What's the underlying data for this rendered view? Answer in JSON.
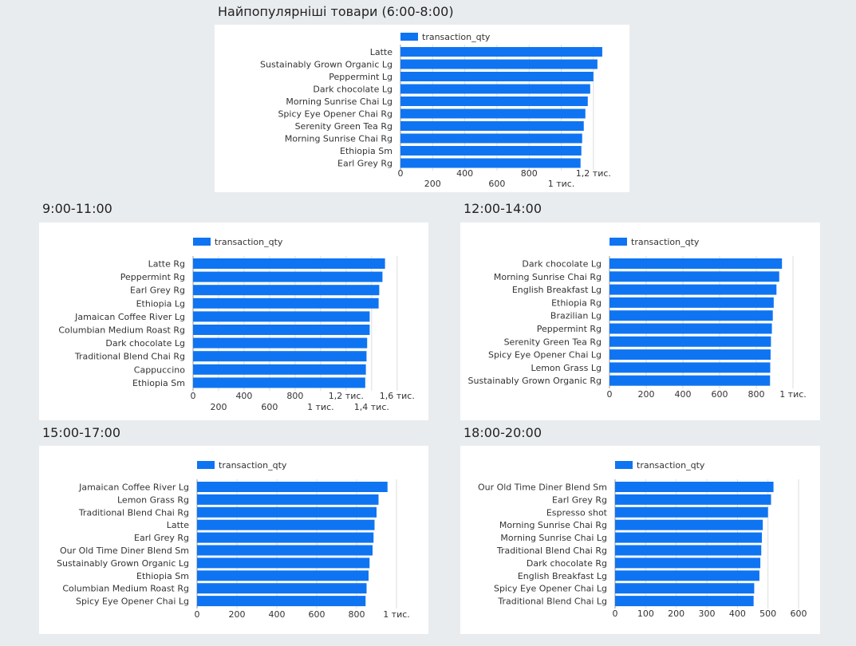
{
  "colors": {
    "bar": "#0f74f2",
    "grid": "#dddddd",
    "background": "#e9ecef"
  },
  "titles": {
    "c1": "Найпопулярніші товари (6:00-8:00)",
    "c2": "9:00-11:00",
    "c3": "12:00-14:00",
    "c4": "15:00-17:00",
    "c5": "18:00-20:00"
  },
  "chart_data": [
    {
      "type": "bar",
      "orientation": "horizontal",
      "title": "Найпопулярніші товари (6:00-8:00)",
      "legend": "top",
      "grid": true,
      "categories": [
        "Latte",
        "Sustainably Grown Organic Lg",
        "Peppermint Lg",
        "Dark chocolate Lg",
        "Morning Sunrise Chai Lg",
        "Spicy Eye Opener Chai Rg",
        "Serenity Green Tea Rg",
        "Morning Sunrise Chai Rg",
        "Ethiopia Sm",
        "Earl Grey Rg"
      ],
      "series": [
        {
          "name": "transaction_qty",
          "values": [
            1255,
            1225,
            1200,
            1180,
            1165,
            1150,
            1140,
            1130,
            1125,
            1120
          ]
        }
      ],
      "ticks": [
        0,
        200,
        400,
        600,
        800,
        1000,
        1200
      ],
      "tick_labels": [
        "0",
        "200",
        "400",
        "600",
        "800",
        "1 тис.",
        "1,2 тис."
      ],
      "xlim": [
        0,
        1300
      ]
    },
    {
      "type": "bar",
      "orientation": "horizontal",
      "title": "9:00-11:00",
      "legend": "top",
      "grid": true,
      "categories": [
        "Latte Rg",
        "Peppermint Rg",
        "Earl Grey Rg",
        "Ethiopia Lg",
        "Jamaican Coffee River Lg",
        "Columbian Medium Roast Rg",
        "Dark chocolate Lg",
        "Traditional Blend Chai Rg",
        "Cappuccino",
        "Ethiopia Sm"
      ],
      "series": [
        {
          "name": "transaction_qty",
          "values": [
            1505,
            1485,
            1460,
            1455,
            1385,
            1385,
            1365,
            1360,
            1355,
            1350
          ]
        }
      ],
      "ticks": [
        0,
        200,
        400,
        600,
        800,
        1000,
        1200,
        1400,
        1600
      ],
      "tick_labels": [
        "0",
        "200",
        "400",
        "600",
        "800",
        "1 тис.",
        "1,2 тис.",
        "1,4 тис.",
        "1,6 тис."
      ],
      "xlim": [
        0,
        1620
      ]
    },
    {
      "type": "bar",
      "orientation": "horizontal",
      "title": "12:00-14:00",
      "legend": "top",
      "grid": true,
      "categories": [
        "Dark chocolate Lg",
        "Morning Sunrise Chai Rg",
        "English Breakfast Lg",
        "Ethiopia Rg",
        "Brazilian Lg",
        "Peppermint Rg",
        "Serenity Green Tea Rg",
        "Spicy Eye Opener Chai Lg",
        "Lemon Grass Lg",
        "Sustainably Grown Organic Rg"
      ],
      "series": [
        {
          "name": "transaction_qty",
          "values": [
            940,
            925,
            910,
            895,
            890,
            885,
            880,
            878,
            876,
            875
          ]
        }
      ],
      "ticks": [
        0,
        200,
        400,
        600,
        800,
        1000
      ],
      "tick_labels": [
        "0",
        "200",
        "400",
        "600",
        "800",
        "1 тис."
      ],
      "xlim": [
        0,
        1000
      ]
    },
    {
      "type": "bar",
      "orientation": "horizontal",
      "title": "15:00-17:00",
      "legend": "top",
      "grid": true,
      "categories": [
        "Jamaican Coffee River Lg",
        "Lemon Grass Rg",
        "Traditional Blend Chai Rg",
        "Latte",
        "Earl Grey Rg",
        "Our Old Time Diner Blend Sm",
        "Sustainably Grown Organic Lg",
        "Ethiopia Sm",
        "Columbian Medium Roast Rg",
        "Spicy Eye Opener Chai Lg"
      ],
      "series": [
        {
          "name": "transaction_qty",
          "values": [
            955,
            910,
            900,
            890,
            885,
            880,
            865,
            860,
            850,
            845
          ]
        }
      ],
      "ticks": [
        0,
        200,
        400,
        600,
        800,
        1000
      ],
      "tick_labels": [
        "0",
        "200",
        "400",
        "600",
        "800",
        "1 тис."
      ],
      "xlim": [
        0,
        1000
      ]
    },
    {
      "type": "bar",
      "orientation": "horizontal",
      "title": "18:00-20:00",
      "legend": "top",
      "grid": true,
      "categories": [
        "Our Old Time Diner Blend Sm",
        "Earl Grey Rg",
        "Espresso shot",
        "Morning Sunrise Chai Rg",
        "Morning Sunrise Chai Lg",
        "Traditional Blend Chai Rg",
        "Dark chocolate Rg",
        "English Breakfast Lg",
        "Spicy Eye Opener Chai Lg",
        "Traditional Blend Chai Lg"
      ],
      "series": [
        {
          "name": "transaction_qty",
          "values": [
            518,
            510,
            500,
            483,
            480,
            478,
            475,
            472,
            455,
            453
          ]
        }
      ],
      "ticks": [
        0,
        100,
        200,
        300,
        400,
        500,
        600
      ],
      "tick_labels": [
        "0",
        "100",
        "200",
        "300",
        "400",
        "500",
        "600"
      ],
      "xlim": [
        0,
        600
      ]
    }
  ]
}
